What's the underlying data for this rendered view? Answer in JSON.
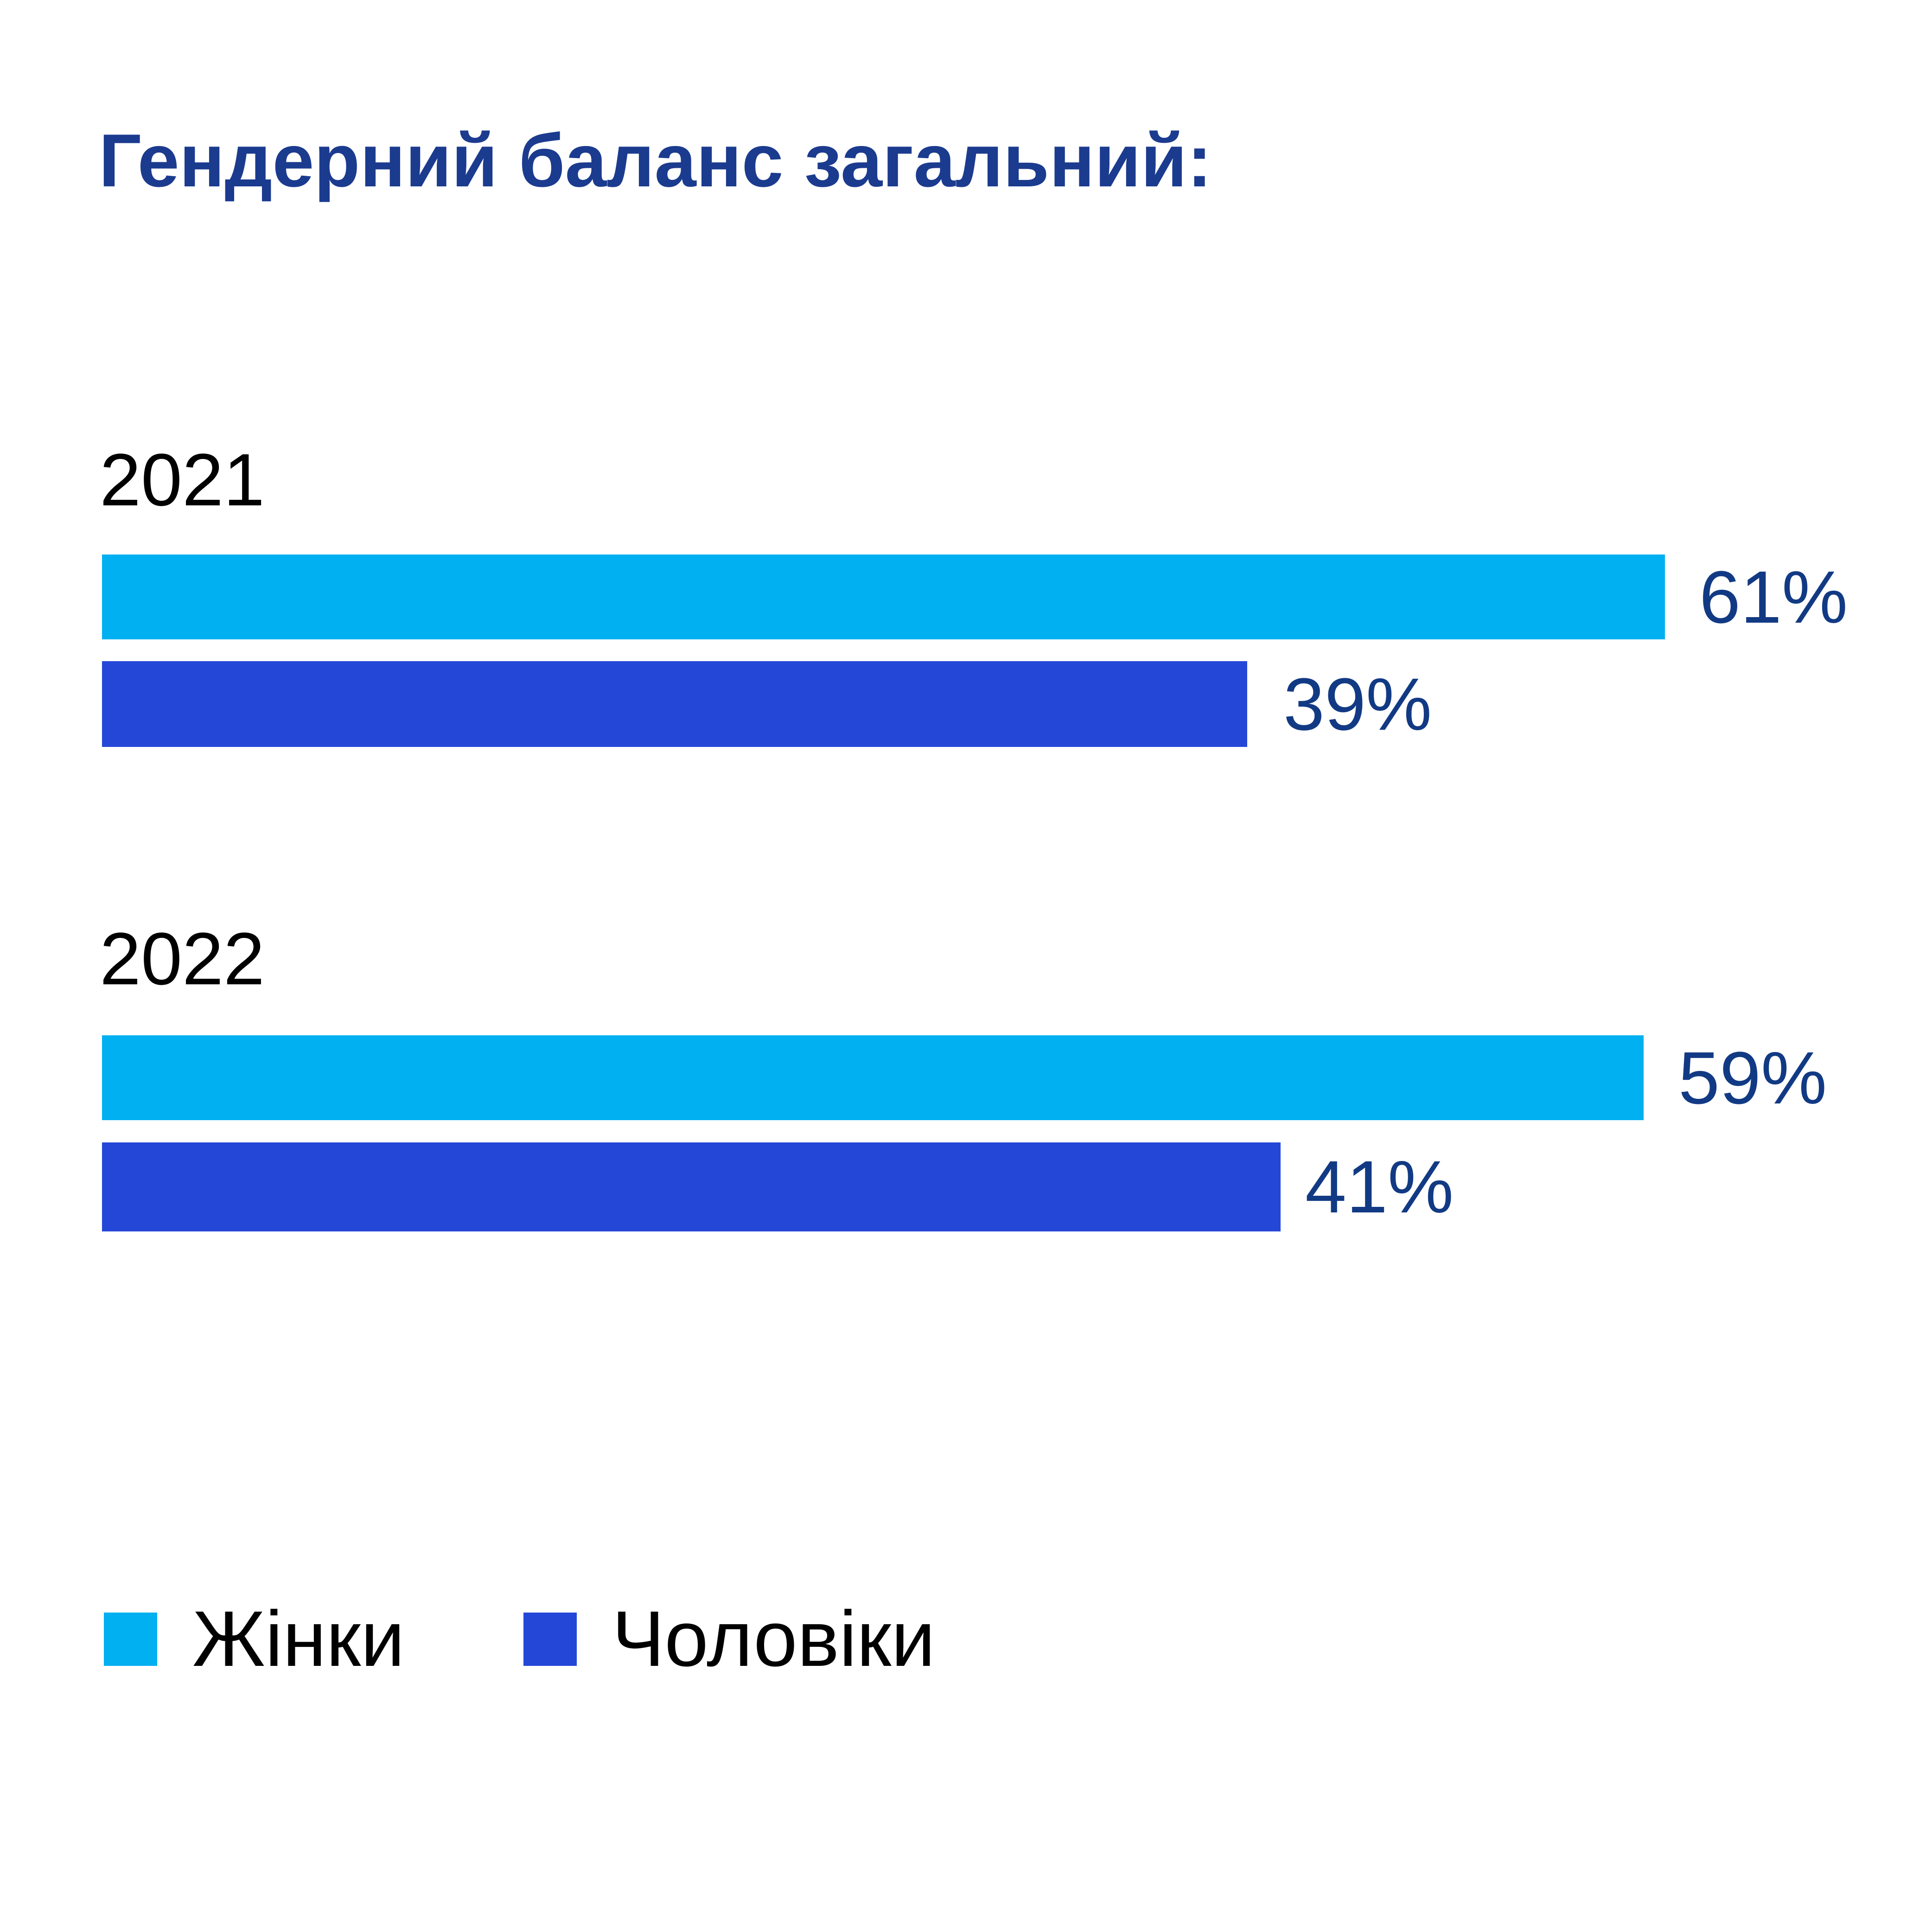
{
  "title": "Гендерний баланс загальний:",
  "groups": [
    {
      "year": "2021",
      "women_value": "61%",
      "men_value": "39%"
    },
    {
      "year": "2022",
      "women_value": "59%",
      "men_value": "41%"
    }
  ],
  "legend": {
    "women": "Жінки",
    "men": "Чоловіки"
  },
  "colors": {
    "women_bar": "#00b0f0",
    "men_bar": "#2447d8",
    "title_text": "#1b3b8f",
    "value_text": "#123a84",
    "category_text": "#000000",
    "legend_text": "#000000",
    "background": "#ffffff"
  },
  "chart_data": {
    "type": "bar",
    "orientation": "horizontal",
    "title": "Гендерний баланс загальний:",
    "categories": [
      "2021",
      "2022"
    ],
    "series": [
      {
        "name": "Жінки",
        "color": "#00b0f0",
        "values": [
          61,
          59
        ]
      },
      {
        "name": "Чоловіки",
        "color": "#2447d8",
        "values": [
          39,
          41
        ]
      }
    ],
    "value_suffix": "%",
    "data_labels": true,
    "xlabel": "",
    "ylabel": "",
    "grid": false,
    "axes_visible": false,
    "legend_position": "bottom-left"
  }
}
